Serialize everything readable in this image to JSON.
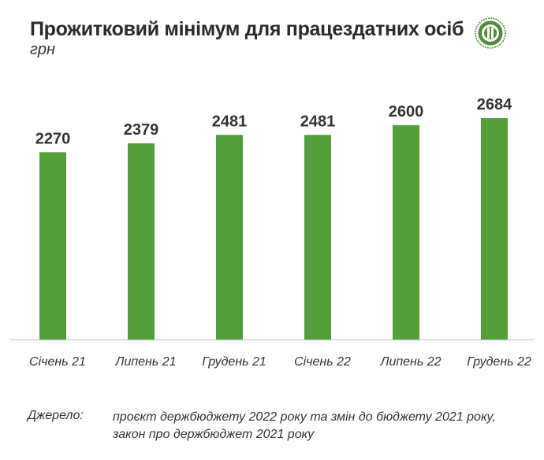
{
  "header": {
    "title": "Прожитковий мінімум для працездатних осіб",
    "unit": "грн",
    "logo_icon": "ekonomichna-pravda-logo-icon"
  },
  "chart_data": {
    "type": "bar",
    "title": "Прожитковий мінімум для працездатних осіб",
    "ylabel": "грн",
    "xlabel": "",
    "categories": [
      "Січень 21",
      "Липень 21",
      "Грудень 21",
      "Січень 22",
      "Липень 22",
      "Грудень 22"
    ],
    "values": [
      2270,
      2379,
      2481,
      2481,
      2600,
      2684
    ],
    "ylim": [
      0,
      2684
    ],
    "grid": false,
    "legend": "none",
    "bar_color": "#53a03a",
    "axis_color": "#bbbbbb"
  },
  "footer": {
    "source_label": "Джерело:",
    "source_lines": [
      "проєкт держбюджету 2022 року та змін до бюджету 2021 року,",
      "закон про держбюджет 2021 року"
    ]
  }
}
